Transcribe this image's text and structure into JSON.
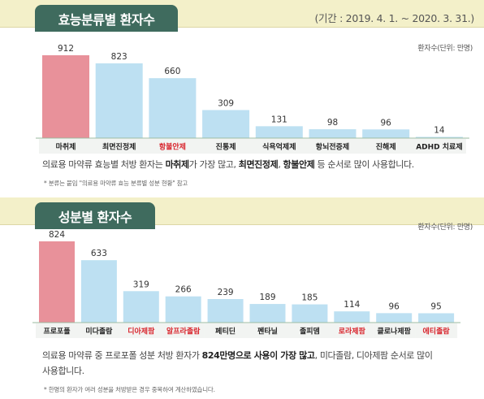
{
  "panel1": {
    "title": "효능분류별 환자수",
    "period": "(기간 : 2019. 4. 1. ~ 2020. 3. 31.)",
    "unit": "환자수(단위: 만명)",
    "desc": {
      "p1": "의료용 마약류 효능별 처방 환자는 ",
      "b1": "마취제",
      "p2": "가 가장 많고, ",
      "b2": "최면진정제",
      "p3": ", ",
      "b3": "항불안제",
      "p4": " 등 순서로 많이 사용합니다."
    },
    "footnote": "* 분류는 붙임 \"의료용 마약류 효능 분류별 성분 현황\" 참고"
  },
  "panel2": {
    "title": "성분별 환자수",
    "unit": "환자수(단위: 만명)",
    "desc": {
      "p1": "의료용 마약류 중 프로포폴 성분 처방 환자가 ",
      "b1": "824만명으로 사용이 가장 많고",
      "p2": ", 미다졸람, 디아제팜 순서로 많이",
      "line2": "사용합니다."
    },
    "footnote": "* 한명의 환자가 여러 성분을 처방받은 경우 중복하여 계산하였습니다."
  },
  "colors": {
    "bar_highlight": "#e8919a",
    "bar_normal": "#bde0f2",
    "label_red": "#d8242c",
    "label_normal": "#222222",
    "tab": "#3f6b5e",
    "band": "#f3f0c9"
  },
  "chart_data": [
    {
      "type": "bar",
      "title": "효능분류별 환자수",
      "ylabel": "환자수(단위: 만명)",
      "categories": [
        "마취제",
        "최면진정제",
        "항불안제",
        "진통제",
        "식욕억제제",
        "항뇌전증제",
        "진해제",
        "ADHD 치료제"
      ],
      "values": [
        912,
        823,
        660,
        309,
        131,
        98,
        96,
        14
      ],
      "highlight_index": 0,
      "red_label_indices": [
        2
      ],
      "ylim": [
        0,
        912
      ],
      "grid": false,
      "legend": "none"
    },
    {
      "type": "bar",
      "title": "성분별 환자수",
      "ylabel": "환자수(단위: 만명)",
      "categories": [
        "프로포폴",
        "미다졸람",
        "디아제팜",
        "알프라졸람",
        "페티딘",
        "펜타닐",
        "졸피뎀",
        "로라제팜",
        "클로나제팜",
        "에티졸람"
      ],
      "values": [
        824,
        633,
        319,
        266,
        239,
        189,
        185,
        114,
        96,
        95
      ],
      "highlight_index": 0,
      "red_label_indices": [
        2,
        3,
        7,
        9
      ],
      "ylim": [
        0,
        824
      ],
      "grid": false,
      "legend": "none"
    }
  ]
}
